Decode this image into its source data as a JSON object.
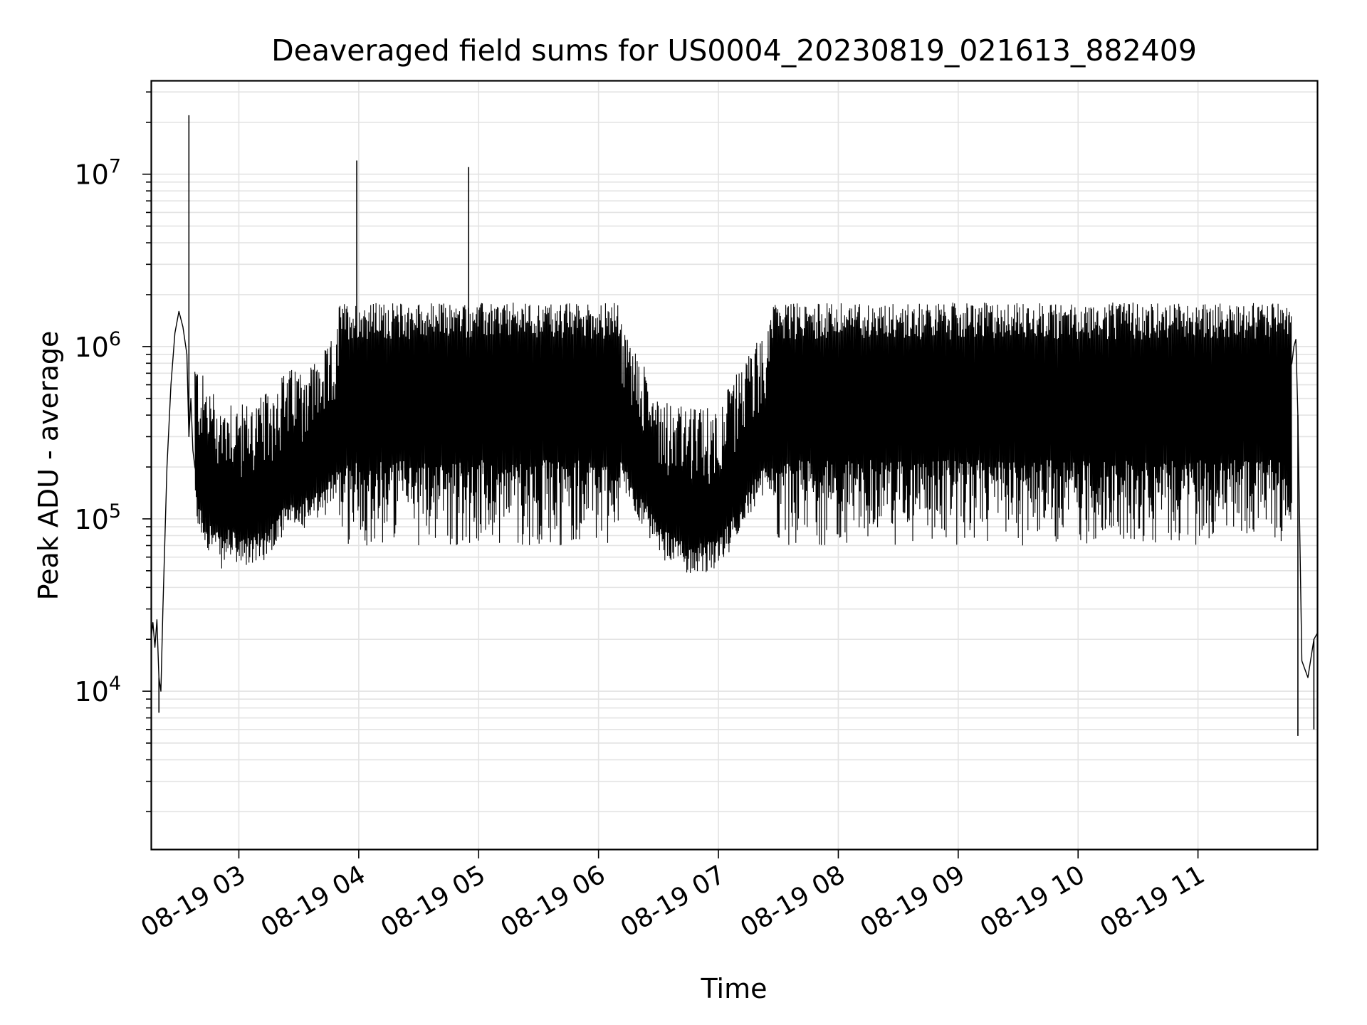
{
  "chart_data": {
    "type": "line",
    "title": "Deaveraged field sums for US0004_20230819_021613_882409",
    "xlabel": "Time",
    "ylabel": "Peak ADU - average",
    "yscale": "log",
    "ylim": [
      1200,
      35000000
    ],
    "xlim": [
      "2023-08-19 02:16",
      "2023-08-19 12:00"
    ],
    "grid": true,
    "line_color": "#000000",
    "x_tick_labels": [
      "08-19 03",
      "08-19 04",
      "08-19 05",
      "08-19 06",
      "08-19 07",
      "08-19 08",
      "08-19 09",
      "08-19 10",
      "08-19 11"
    ],
    "y_tick_labels": [
      {
        "base": "10",
        "exp": "4"
      },
      {
        "base": "10",
        "exp": "5"
      },
      {
        "base": "10",
        "exp": "6"
      },
      {
        "base": "10",
        "exp": "7"
      }
    ],
    "series": [
      {
        "x": [
          "02:16",
          "02:17",
          "02:18",
          "02:19",
          "02:20",
          "02:21",
          "02:22",
          "02:24",
          "02:26",
          "02:28",
          "02:30",
          "02:32",
          "02:34",
          "02:35",
          "02:36",
          "02:37",
          "02:38",
          "02:40",
          "02:42",
          "02:45",
          "02:48",
          "02:50",
          "02:52",
          "02:55",
          "02:58",
          "03:00",
          "03:05",
          "03:10",
          "03:15",
          "03:20",
          "03:25",
          "03:30",
          "03:35",
          "03:40",
          "03:45",
          "03:50",
          "03:55",
          "04:00",
          "04:10",
          "04:20",
          "04:30",
          "04:40",
          "04:50",
          "05:00",
          "05:15",
          "05:30",
          "05:45",
          "06:00",
          "06:15",
          "06:30",
          "06:45",
          "07:00",
          "07:15",
          "07:30",
          "07:45",
          "08:00",
          "08:15",
          "08:30",
          "08:45",
          "09:00",
          "09:15",
          "09:30",
          "09:45",
          "10:00",
          "10:15",
          "10:30",
          "10:45",
          "11:00",
          "11:15",
          "11:30",
          "11:40",
          "11:45",
          "11:47",
          "11:48",
          "11:49",
          "11:50",
          "11:52",
          "11:55",
          "11:58",
          "12:00"
        ],
        "y": [
          20000,
          25000,
          18000,
          26000,
          12000,
          10000,
          30000,
          200000,
          600000,
          1200000,
          1600000,
          1300000,
          900000,
          300000,
          500000,
          250000,
          200000,
          160000,
          150000,
          130000,
          120000,
          110000,
          100000,
          120000,
          110000,
          100000,
          105000,
          110000,
          120000,
          150000,
          160000,
          170000,
          180000,
          190000,
          220000,
          300000,
          400000,
          350000,
          450000,
          500000,
          550000,
          600000,
          650000,
          700000,
          750000,
          720000,
          700000,
          500000,
          250000,
          120000,
          95000,
          100000,
          200000,
          350000,
          450000,
          500000,
          550000,
          520000,
          480000,
          460000,
          450000,
          400000,
          380000,
          350000,
          330000,
          330000,
          300000,
          320000,
          330000,
          380000,
          500000,
          700000,
          800000,
          1000000,
          1100000,
          400000,
          15000,
          12000,
          20000,
          22000
        ]
      }
    ],
    "spikes": [
      {
        "x": "02:35",
        "y": 22000000
      },
      {
        "x": "03:59",
        "y": 12000000
      },
      {
        "x": "04:55",
        "y": 11000000
      }
    ],
    "dips": [
      {
        "x": "02:20",
        "y": 7500
      },
      {
        "x": "11:50",
        "y": 5500
      },
      {
        "x": "11:58",
        "y": 6000
      }
    ]
  }
}
